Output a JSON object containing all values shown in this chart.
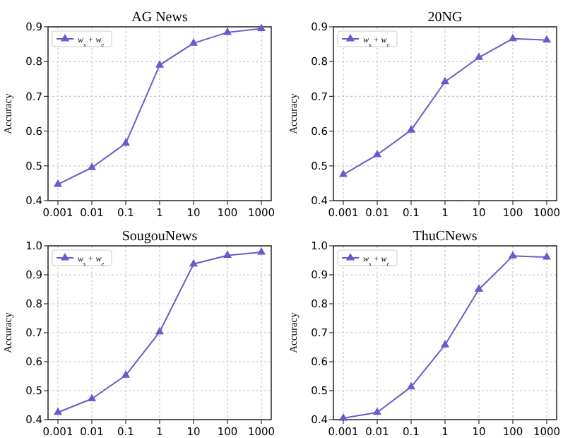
{
  "chart_data": [
    {
      "type": "line",
      "title": "AG News",
      "ylabel": "Accuracy",
      "categories": [
        "0.001",
        "0.01",
        "0.1",
        "1",
        "10",
        "100",
        "1000"
      ],
      "series": [
        {
          "name": "w$_{s}$ + w$_{e}$",
          "color": "#6a5acd",
          "values": [
            0.447,
            0.495,
            0.565,
            0.79,
            0.853,
            0.884,
            0.895
          ]
        }
      ],
      "ylim": [
        0.4,
        0.9
      ],
      "yticks": [
        0.4,
        0.5,
        0.6,
        0.7,
        0.8,
        0.9
      ],
      "grid": true,
      "legend": "top left",
      "marker": "triangle",
      "line_style": "solid"
    },
    {
      "type": "line",
      "title": "20NG",
      "ylabel": "Accuracy",
      "categories": [
        "0.001",
        "0.01",
        "0.1",
        "1",
        "10",
        "100",
        "1000"
      ],
      "series": [
        {
          "name": "w$_{s}$ + w$_{e}$",
          "color": "#6a5acd",
          "values": [
            0.475,
            0.532,
            0.603,
            0.742,
            0.812,
            0.866,
            0.862
          ]
        }
      ],
      "ylim": [
        0.4,
        0.9
      ],
      "yticks": [
        0.4,
        0.5,
        0.6,
        0.7,
        0.8,
        0.9
      ],
      "grid": true,
      "legend": "top left",
      "marker": "triangle",
      "line_style": "solid"
    },
    {
      "type": "line",
      "title": "SougouNews",
      "ylabel": "Accuracy",
      "categories": [
        "0.001",
        "0.01",
        "0.1",
        "1",
        "10",
        "100",
        "1000"
      ],
      "series": [
        {
          "name": "w$_{s}$ + w$_{e}$",
          "color": "#6a5acd",
          "values": [
            0.425,
            0.472,
            0.553,
            0.703,
            0.937,
            0.967,
            0.978
          ]
        }
      ],
      "ylim": [
        0.4,
        1.0
      ],
      "yticks": [
        {
          "value": 0.4,
          "label": "0.4"
        },
        {
          "value": 0.5,
          "label": "0.5"
        },
        {
          "value": 0.6,
          "label": "0.6"
        },
        {
          "value": 0.7,
          "label": "0.7"
        },
        {
          "value": 0.8,
          "label": "0.8"
        },
        {
          "value": 0.9,
          "label": "0.9"
        },
        {
          "value": 1.0,
          "label": "1.0"
        }
      ],
      "grid": true,
      "legend": "top left",
      "marker": "triangle",
      "line_style": "solid"
    },
    {
      "type": "line",
      "title": "ThuCNews",
      "ylabel": "Accuracy",
      "categories": [
        "0.001",
        "0.01",
        "0.1",
        "1",
        "10",
        "100",
        "1000"
      ],
      "series": [
        {
          "name": "w$_{s}$ + w$_{e}$",
          "color": "#6a5acd",
          "values": [
            0.405,
            0.425,
            0.513,
            0.658,
            0.85,
            0.965,
            0.961
          ]
        }
      ],
      "ylim": [
        0.4,
        1.0
      ],
      "yticks": [
        {
          "value": 0.4,
          "label": "0.4"
        },
        {
          "value": 0.5,
          "label": "0.5"
        },
        {
          "value": 0.6,
          "label": "0.6"
        },
        {
          "value": 0.7,
          "label": "0.7"
        },
        {
          "value": 0.8,
          "label": "0.8"
        },
        {
          "value": 0.9,
          "label": "0.9"
        },
        {
          "value": 1.0,
          "label": "1.0"
        }
      ],
      "grid": true,
      "legend": "top left",
      "marker": "triangle",
      "line_style": "solid"
    }
  ]
}
